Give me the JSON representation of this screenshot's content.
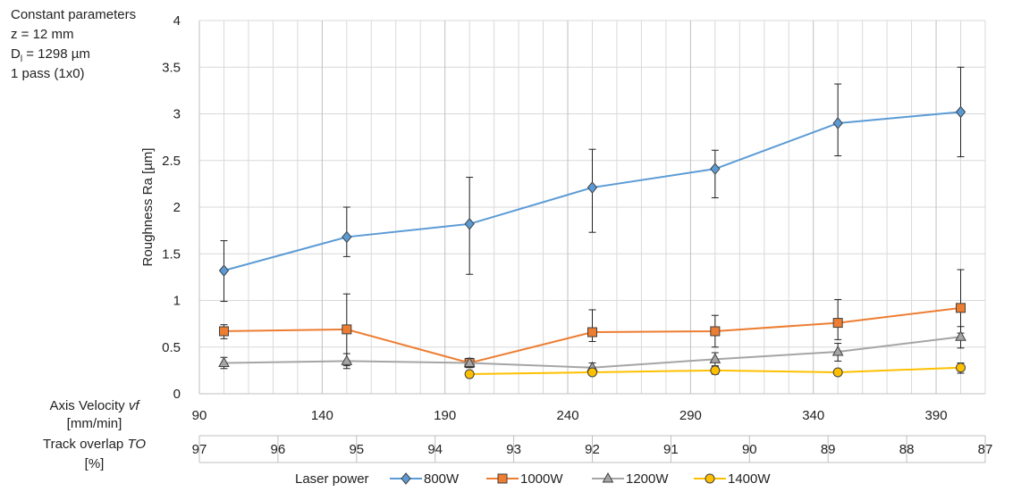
{
  "params": {
    "title": "Constant parameters",
    "z": "z = 12 mm",
    "dl_prefix": "D",
    "dl_sub": "l",
    "dl_suffix": " = 1298 µm",
    "pass": "1 pass (1x0)"
  },
  "axis_labels": {
    "velocity_line1": "Axis Velocity vf",
    "velocity_line2": "[mm/min]",
    "overlap_line1": "Track overlap TO",
    "overlap_line2": "[%]"
  },
  "colors": {
    "800W": "#5B9BD5",
    "1000W": "#ED7D31",
    "1200W": "#A5A5A5",
    "1400W": "#FFC000"
  },
  "chart_data": {
    "type": "line",
    "title": "",
    "xlabel": "Axis Velocity vf [mm/min]",
    "x2label": "Track overlap TO [%]",
    "ylabel": "Roughness Ra [µm]",
    "xlim": [
      90,
      410
    ],
    "ylim": [
      0,
      4
    ],
    "y_ticks": [
      "0",
      "0.5",
      "1",
      "1.5",
      "2",
      "2.5",
      "3",
      "3.5",
      "4"
    ],
    "x_ticks": [
      "90",
      "140",
      "190",
      "240",
      "290",
      "340",
      "390"
    ],
    "x2_ticks": [
      "97",
      "96",
      "95",
      "94",
      "93",
      "92",
      "91",
      "90",
      "89",
      "88",
      "87"
    ],
    "grid": true,
    "legend_title": "Laser power",
    "legend_position": "bottom",
    "series": [
      {
        "name": "800W",
        "marker": "diamond",
        "x": [
          100,
          150,
          200,
          250,
          300,
          350,
          400
        ],
        "y": [
          1.32,
          1.68,
          1.82,
          2.21,
          2.41,
          2.9,
          3.02
        ],
        "err_low": [
          0.99,
          1.47,
          1.28,
          1.73,
          2.1,
          2.55,
          2.54
        ],
        "err_high": [
          1.64,
          2.0,
          2.32,
          2.62,
          2.61,
          3.32,
          3.5
        ]
      },
      {
        "name": "1000W",
        "marker": "square",
        "x": [
          100,
          150,
          200,
          250,
          300,
          350,
          400
        ],
        "y": [
          0.67,
          0.69,
          0.33,
          0.66,
          0.67,
          0.76,
          0.92
        ],
        "err_low": [
          0.59,
          0.3,
          0.3,
          0.56,
          0.5,
          0.58,
          0.65
        ],
        "err_high": [
          0.74,
          1.07,
          0.36,
          0.9,
          0.84,
          1.01,
          1.33
        ]
      },
      {
        "name": "1200W",
        "marker": "triangle",
        "x": [
          100,
          150,
          200,
          250,
          300,
          350,
          400
        ],
        "y": [
          0.33,
          0.35,
          0.33,
          0.28,
          0.37,
          0.45,
          0.61
        ],
        "err_low": [
          0.27,
          0.27,
          0.28,
          0.24,
          0.3,
          0.35,
          0.49
        ],
        "err_high": [
          0.39,
          0.43,
          0.38,
          0.33,
          0.44,
          0.54,
          0.72
        ]
      },
      {
        "name": "1400W",
        "marker": "circle",
        "x": [
          200,
          250,
          300,
          350,
          400
        ],
        "y": [
          0.21,
          0.23,
          0.25,
          0.23,
          0.28
        ],
        "err_low": [
          0.18,
          0.2,
          0.21,
          0.2,
          0.22
        ],
        "err_high": [
          0.24,
          0.26,
          0.29,
          0.26,
          0.33
        ]
      }
    ]
  }
}
